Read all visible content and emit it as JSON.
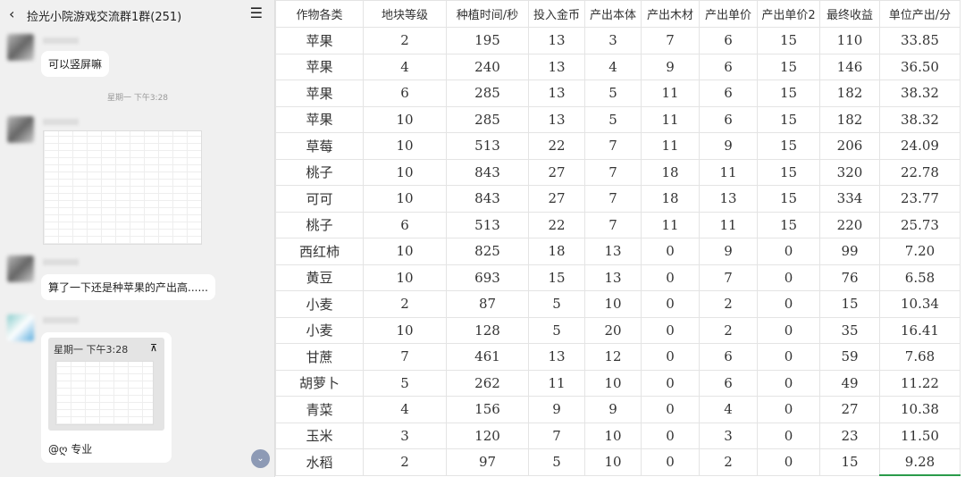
{
  "chat": {
    "title": "捡光小院游戏交流群1群(251)",
    "back_icon": "chevron-left-icon",
    "menu_icon": "hamburger-menu-icon",
    "messages": [
      {
        "text": "可以竖屏嘛"
      },
      {
        "time": "星期一 下午3:28"
      },
      {
        "text": "算了一下还是种苹果的产出高......"
      },
      {
        "quote_time": "星期一 下午3:28",
        "text": "@ღ 专业"
      }
    ]
  },
  "sheet": {
    "headers": [
      "作物各类",
      "地块等级",
      "种植时间/秒",
      "投入金币",
      "产出本体",
      "产出木材",
      "产出单价",
      "产出单价2",
      "最终收益",
      "单位产出/分"
    ],
    "rows": [
      [
        "苹果",
        "2",
        "195",
        "13",
        "3",
        "7",
        "6",
        "15",
        "110",
        "33.85"
      ],
      [
        "苹果",
        "4",
        "240",
        "13",
        "4",
        "9",
        "6",
        "15",
        "146",
        "36.50"
      ],
      [
        "苹果",
        "6",
        "285",
        "13",
        "5",
        "11",
        "6",
        "15",
        "182",
        "38.32"
      ],
      [
        "苹果",
        "10",
        "285",
        "13",
        "5",
        "11",
        "6",
        "15",
        "182",
        "38.32"
      ],
      [
        "草莓",
        "10",
        "513",
        "22",
        "7",
        "11",
        "9",
        "15",
        "206",
        "24.09"
      ],
      [
        "桃子",
        "10",
        "843",
        "27",
        "7",
        "18",
        "11",
        "15",
        "320",
        "22.78"
      ],
      [
        "可可",
        "10",
        "843",
        "27",
        "7",
        "18",
        "13",
        "15",
        "334",
        "23.77"
      ],
      [
        "桃子",
        "6",
        "513",
        "22",
        "7",
        "11",
        "11",
        "15",
        "220",
        "25.73"
      ],
      [
        "西红柿",
        "10",
        "825",
        "18",
        "13",
        "0",
        "9",
        "0",
        "99",
        "7.20"
      ],
      [
        "黄豆",
        "10",
        "693",
        "15",
        "13",
        "0",
        "7",
        "0",
        "76",
        "6.58"
      ],
      [
        "小麦",
        "2",
        "87",
        "5",
        "10",
        "0",
        "2",
        "0",
        "15",
        "10.34"
      ],
      [
        "小麦",
        "10",
        "128",
        "5",
        "20",
        "0",
        "2",
        "0",
        "35",
        "16.41"
      ],
      [
        "甘蔗",
        "7",
        "461",
        "13",
        "12",
        "0",
        "6",
        "0",
        "59",
        "7.68"
      ],
      [
        "胡萝卜",
        "5",
        "262",
        "11",
        "10",
        "0",
        "6",
        "0",
        "49",
        "11.22"
      ],
      [
        "青菜",
        "4",
        "156",
        "9",
        "9",
        "0",
        "4",
        "0",
        "27",
        "10.38"
      ],
      [
        "玉米",
        "3",
        "120",
        "7",
        "10",
        "0",
        "3",
        "0",
        "23",
        "11.50"
      ],
      [
        "水稻",
        "2",
        "97",
        "5",
        "10",
        "0",
        "2",
        "0",
        "15",
        "9.28"
      ]
    ]
  }
}
